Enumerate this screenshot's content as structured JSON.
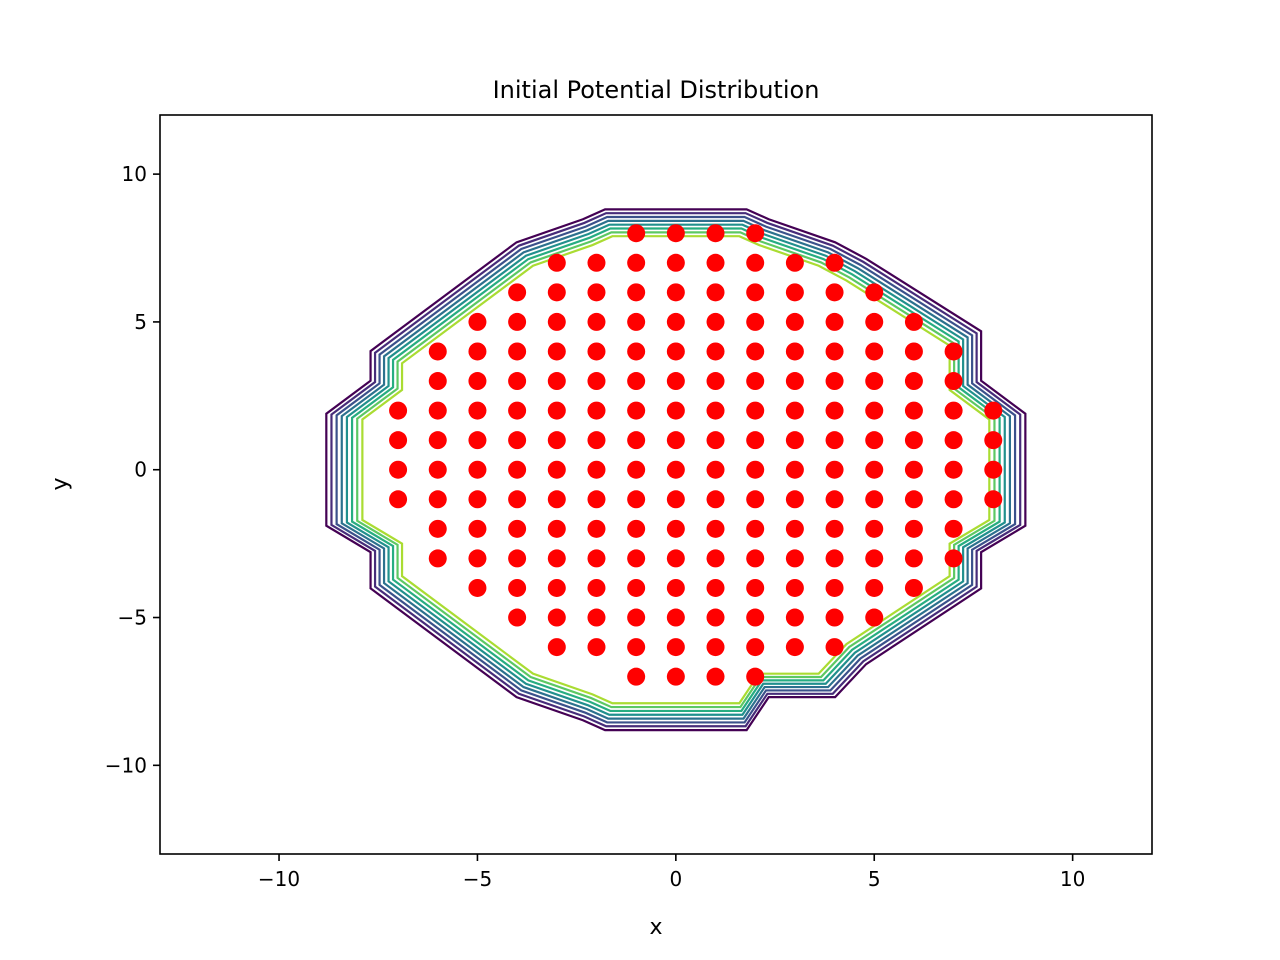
{
  "chart_data": {
    "type": "contour+scatter",
    "title": "Initial Potential Distribution",
    "xlabel": "x",
    "ylabel": "y",
    "xlim": [
      -13,
      12
    ],
    "ylim": [
      -13,
      12
    ],
    "xticks": [
      -10,
      -5,
      0,
      5,
      10
    ],
    "yticks": [
      -10,
      -5,
      0,
      5,
      10
    ],
    "xtick_labels": [
      "−10",
      "−5",
      "0",
      "5",
      "10"
    ],
    "ytick_labels": [
      "−10",
      "−5",
      "0",
      "5",
      "10"
    ],
    "grid": false,
    "contour_colors": [
      "#440154",
      "#472c7a",
      "#3b518b",
      "#2c718e",
      "#21908d",
      "#27ad81",
      "#5cc863",
      "#aadc32"
    ],
    "marker_color": "#ff0000",
    "scatter_rows": [
      {
        "y": 8,
        "x_min": -1,
        "x_max": 2
      },
      {
        "y": 7,
        "x_min": -3,
        "x_max": 4
      },
      {
        "y": 6,
        "x_min": -4,
        "x_max": 5
      },
      {
        "y": 5,
        "x_min": -5,
        "x_max": 6
      },
      {
        "y": 4,
        "x_min": -6,
        "x_max": 7
      },
      {
        "y": 3,
        "x_min": -6,
        "x_max": 7
      },
      {
        "y": 2,
        "x_min": -7,
        "x_max": 8
      },
      {
        "y": 1,
        "x_min": -7,
        "x_max": 8
      },
      {
        "y": 0,
        "x_min": -7,
        "x_max": 8
      },
      {
        "y": -1,
        "x_min": -7,
        "x_max": 8
      },
      {
        "y": -2,
        "x_min": -6,
        "x_max": 7
      },
      {
        "y": -3,
        "x_min": -6,
        "x_max": 7
      },
      {
        "y": -4,
        "x_min": -5,
        "x_max": 6
      },
      {
        "y": -5,
        "x_min": -4,
        "x_max": 5
      },
      {
        "y": -6,
        "x_min": -3,
        "x_max": 4
      },
      {
        "y": -7,
        "x_min": -1,
        "x_max": 2
      }
    ],
    "boundary_polygon": [
      [
        -1.6,
        7.9
      ],
      [
        1.6,
        7.9
      ],
      [
        2.1,
        7.6
      ],
      [
        3.6,
        6.9
      ],
      [
        4.3,
        6.4
      ],
      [
        6.9,
        4.2
      ],
      [
        6.9,
        2.7
      ],
      [
        7.9,
        1.7
      ],
      [
        7.9,
        -1.7
      ],
      [
        6.9,
        -2.5
      ],
      [
        6.9,
        -3.6
      ],
      [
        4.3,
        -5.9
      ],
      [
        3.6,
        -6.9
      ],
      [
        2.1,
        -6.9
      ],
      [
        1.6,
        -7.9
      ],
      [
        -1.6,
        -7.9
      ],
      [
        -2.1,
        -7.6
      ],
      [
        -3.6,
        -6.9
      ],
      [
        -6.9,
        -3.6
      ],
      [
        -6.9,
        -2.5
      ],
      [
        -7.9,
        -1.7
      ],
      [
        -7.9,
        1.7
      ],
      [
        -6.9,
        2.7
      ],
      [
        -6.9,
        3.6
      ],
      [
        -3.6,
        6.9
      ],
      [
        -2.1,
        7.6
      ]
    ]
  }
}
